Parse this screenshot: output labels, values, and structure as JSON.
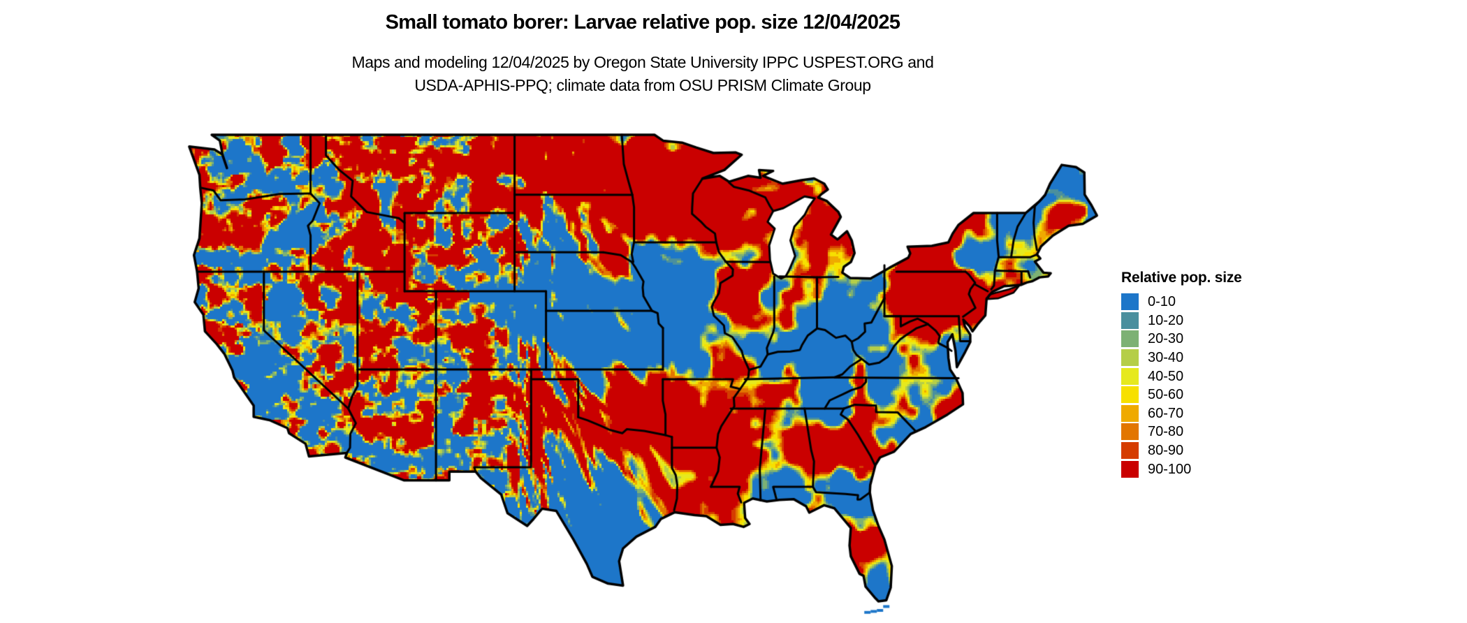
{
  "title": "Small tomato borer: Larvae relative pop. size 12/04/2025",
  "subtitle": {
    "line1": "Maps and modeling 12/04/2025 by Oregon State University IPPC USPEST.ORG and",
    "line2": "USDA-APHIS-PPQ; climate data from OSU PRISM Climate Group"
  },
  "legend": {
    "title": "Relative pop. size",
    "entries": [
      {
        "label": "0-10",
        "color": "#1d76c9"
      },
      {
        "label": "10-20",
        "color": "#4a8f9e"
      },
      {
        "label": "20-30",
        "color": "#7db174"
      },
      {
        "label": "30-40",
        "color": "#b5ce48"
      },
      {
        "label": "40-50",
        "color": "#e6e91e"
      },
      {
        "label": "50-60",
        "color": "#f7e000"
      },
      {
        "label": "60-70",
        "color": "#efaa00"
      },
      {
        "label": "70-80",
        "color": "#e27600"
      },
      {
        "label": "80-90",
        "color": "#d53c00"
      },
      {
        "label": "90-100",
        "color": "#ca0000"
      }
    ]
  },
  "map": {
    "border_color": "#000000",
    "water_color": "#ffffff"
  }
}
